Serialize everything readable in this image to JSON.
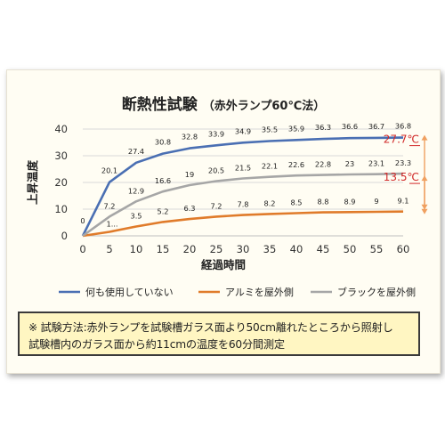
{
  "chart_data": {
    "type": "line",
    "title": "断熱性試験",
    "subtitle": "（赤外ランプ60℃法）",
    "xlabel": "経過時間",
    "ylabel": "上昇温度",
    "xlim": [
      0,
      60
    ],
    "ylim": [
      0,
      40
    ],
    "x_ticks": [
      0,
      5,
      10,
      15,
      20,
      25,
      30,
      35,
      40,
      45,
      50,
      55,
      60
    ],
    "y_ticks": [
      0,
      10,
      20,
      30,
      40
    ],
    "grid": true,
    "legend_position": "bottom",
    "x": [
      0,
      5,
      10,
      15,
      20,
      25,
      30,
      35,
      40,
      45,
      50,
      55,
      60
    ],
    "series": [
      {
        "name": "何も使用していない",
        "color": "#4a6fb3",
        "values": [
          0,
          20.1,
          27.4,
          30.8,
          32.8,
          33.9,
          34.9,
          35.5,
          35.9,
          36.3,
          36.6,
          36.7,
          36.8
        ],
        "labels": [
          "0",
          "20.1",
          "27.4",
          "30.8",
          "32.8",
          "33.9",
          "34.9",
          "35.5",
          "35.9",
          "36.3",
          "36.6",
          "36.7",
          "36.8"
        ]
      },
      {
        "name": "アルミを屋外側",
        "color": "#e07b2a",
        "values": [
          0,
          1.5,
          3.5,
          5.2,
          6.3,
          7.2,
          7.8,
          8.2,
          8.5,
          8.8,
          8.9,
          9,
          9.1
        ],
        "labels": [
          "",
          "1...",
          "3.5",
          "5.2",
          "6.3",
          "7.2",
          "7.8",
          "8.2",
          "8.5",
          "8.8",
          "8.9",
          "9",
          "9.1"
        ]
      },
      {
        "name": "ブラックを屋外側",
        "color": "#a6a6a6",
        "values": [
          0,
          7.2,
          12.9,
          16.6,
          19,
          20.5,
          21.5,
          22.1,
          22.6,
          22.8,
          23,
          23.1,
          23.3
        ],
        "labels": [
          "",
          "7.2",
          "12.9",
          "16.6",
          "19",
          "20.5",
          "21.5",
          "22.1",
          "22.6",
          "22.8",
          "23",
          "23.1",
          "23.3"
        ]
      }
    ],
    "annotations": [
      {
        "text": "27.7℃",
        "from": 36.8,
        "to": 9.1,
        "color": "#d12a2a"
      },
      {
        "text": "13.5℃",
        "from": 23.3,
        "to": 9.1,
        "color": "#d12a2a"
      }
    ],
    "arrow_color": "#f0a060"
  },
  "note": {
    "line1": "※ 試験方法:赤外ランプを試験槽ガラス面より50cm離れたところから照射し",
    "line2": "試験槽内のガラス面から約11cmの温度を60分間測定"
  }
}
